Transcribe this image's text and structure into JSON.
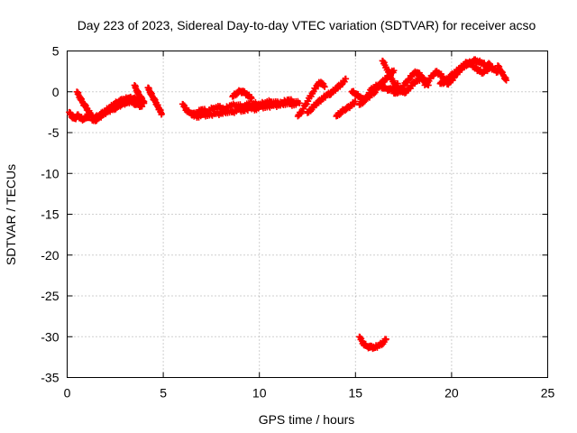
{
  "chart_data": {
    "type": "scatter",
    "title": "Day 223 of 2023, Sidereal Day-to-day VTEC variation (SDTVAR) for receiver acso",
    "xlabel": "GPS time / hours",
    "ylabel": "SDTVAR / TECUs",
    "xlim": [
      0,
      25
    ],
    "ylim": [
      -35,
      5
    ],
    "grid": true,
    "marker": "plus",
    "color": "#ff0000",
    "x_ticks": [
      0,
      5,
      10,
      15,
      20,
      25
    ],
    "y_ticks": [
      5,
      0,
      -5,
      -10,
      -15,
      -20,
      -25,
      -30,
      -35
    ],
    "series": [
      {
        "name": "SDTVAR",
        "segments": [
          {
            "x": [
              0.1,
              0.25,
              0.4,
              0.55,
              0.7,
              0.85,
              1.0,
              1.15
            ],
            "y": [
              -2.5,
              -3.0,
              -3.3,
              -2.9,
              -3.2,
              -3.4,
              -3.0,
              -3.2
            ]
          },
          {
            "x": [
              0.5,
              0.65,
              0.8,
              0.95,
              1.1,
              1.25,
              1.4,
              1.6,
              1.8,
              2.0,
              2.2,
              2.4,
              2.6,
              2.8,
              3.0,
              3.2,
              3.4,
              3.6,
              3.8,
              4.0
            ],
            "y": [
              0.0,
              -0.6,
              -1.3,
              -1.8,
              -2.3,
              -2.9,
              -3.2,
              -3.0,
              -2.7,
              -2.3,
              -2.0,
              -1.6,
              -1.3,
              -1.1,
              -0.9,
              -0.8,
              -0.8,
              -0.9,
              -1.1,
              -1.2
            ]
          },
          {
            "x": [
              1.3,
              1.5,
              1.7,
              1.9,
              2.1,
              2.3,
              2.5,
              2.7,
              2.9,
              3.1,
              3.3,
              3.5,
              3.7,
              3.9
            ],
            "y": [
              -3.5,
              -3.4,
              -3.1,
              -2.7,
              -2.4,
              -2.2,
              -2.0,
              -1.7,
              -1.5,
              -1.3,
              -1.2,
              -1.4,
              -1.6,
              -1.8
            ]
          },
          {
            "x": [
              3.5,
              3.62,
              3.75,
              3.88,
              4.0
            ],
            "y": [
              0.8,
              0.2,
              -0.4,
              -0.9,
              -1.4
            ]
          },
          {
            "x": [
              4.2,
              4.32,
              4.44,
              4.56,
              4.68,
              4.8,
              4.92
            ],
            "y": [
              0.5,
              0.0,
              -0.6,
              -1.1,
              -1.6,
              -2.2,
              -2.7
            ]
          },
          {
            "x": [
              6.0,
              6.2,
              6.4,
              6.6,
              6.8,
              7.0,
              7.3,
              7.6,
              7.9,
              8.2,
              8.5,
              8.8,
              9.1,
              9.4,
              9.7,
              10.0,
              10.3,
              10.6,
              10.9,
              11.2,
              11.5,
              11.8,
              12.1
            ],
            "y": [
              -1.5,
              -2.2,
              -2.6,
              -2.8,
              -2.5,
              -2.2,
              -2.4,
              -2.0,
              -1.9,
              -2.1,
              -1.7,
              -1.6,
              -1.8,
              -1.6,
              -1.4,
              -1.6,
              -1.3,
              -1.2,
              -1.4,
              -1.3,
              -1.0,
              -1.2,
              -1.4
            ]
          },
          {
            "x": [
              6.5,
              6.8,
              7.1,
              7.4,
              7.7,
              8.0,
              8.3,
              8.6,
              8.9,
              9.2,
              9.5,
              9.8,
              10.1,
              10.4,
              10.7,
              11.0,
              11.3,
              11.6,
              11.9
            ],
            "y": [
              -2.9,
              -3.0,
              -2.8,
              -2.9,
              -2.6,
              -2.7,
              -2.4,
              -2.5,
              -2.2,
              -2.3,
              -2.0,
              -2.1,
              -1.8,
              -1.9,
              -1.6,
              -1.7,
              -1.4,
              -1.5,
              -1.6
            ]
          },
          {
            "x": [
              8.6,
              8.8,
              9.0,
              9.2,
              9.4,
              9.6
            ],
            "y": [
              -0.6,
              -0.2,
              0.1,
              -0.1,
              -0.4,
              -0.8
            ]
          },
          {
            "x": [
              12.0,
              12.2,
              12.4,
              12.6,
              12.8,
              13.0,
              13.2,
              13.4
            ],
            "y": [
              -3.0,
              -2.4,
              -1.6,
              -0.8,
              0.0,
              0.8,
              1.2,
              0.6
            ]
          },
          {
            "x": [
              12.5,
              12.7,
              12.9,
              13.1,
              13.3,
              13.5,
              13.7,
              13.9,
              14.1,
              14.3,
              14.5
            ],
            "y": [
              -2.6,
              -2.1,
              -1.6,
              -1.2,
              -0.8,
              -0.4,
              -0.2,
              0.2,
              0.6,
              1.0,
              1.6
            ]
          },
          {
            "x": [
              14.0,
              14.2,
              14.4,
              14.6,
              14.8,
              15.0
            ],
            "y": [
              -3.0,
              -2.6,
              -2.2,
              -2.0,
              -1.6,
              -1.2
            ]
          },
          {
            "x": [
              14.8,
              15.0,
              15.2,
              15.4,
              15.6,
              15.8,
              16.0,
              16.2,
              16.4,
              16.6,
              16.8,
              17.0
            ],
            "y": [
              0.0,
              -0.2,
              -0.6,
              -1.0,
              -0.8,
              -0.4,
              0.0,
              0.6,
              1.2,
              1.6,
              2.2,
              2.6
            ]
          },
          {
            "x": [
              15.2,
              15.4,
              15.6,
              15.8,
              16.0,
              16.2,
              16.4,
              16.6,
              16.8,
              17.0,
              17.2
            ],
            "y": [
              -1.6,
              -1.2,
              -0.6,
              0.2,
              0.6,
              0.8,
              0.6,
              0.4,
              0.2,
              0.6,
              1.0
            ]
          },
          {
            "x": [
              16.4,
              16.6,
              16.8,
              17.0,
              17.2,
              17.4,
              17.6,
              17.8,
              18.0,
              18.2,
              18.4,
              18.6
            ],
            "y": [
              3.8,
              3.0,
              2.0,
              1.0,
              0.4,
              0.0,
              0.0,
              0.4,
              1.0,
              1.4,
              1.6,
              1.4
            ]
          },
          {
            "x": [
              17.0,
              17.2,
              17.4,
              17.6,
              17.8,
              18.0,
              18.2,
              18.4,
              18.6,
              18.8
            ],
            "y": [
              -0.2,
              0.0,
              0.4,
              1.0,
              1.6,
              2.2,
              2.4,
              2.0,
              1.4,
              0.8
            ]
          },
          {
            "x": [
              18.6,
              18.8,
              19.0,
              19.2,
              19.4,
              19.6,
              19.8,
              20.0,
              20.2,
              20.4,
              20.6,
              20.8,
              21.0,
              21.2,
              21.4,
              21.6,
              21.8,
              22.0
            ],
            "y": [
              0.8,
              1.4,
              2.0,
              2.4,
              2.2,
              1.6,
              1.0,
              1.4,
              2.0,
              2.6,
              3.0,
              3.4,
              3.6,
              3.8,
              3.7,
              3.5,
              3.2,
              3.4
            ]
          },
          {
            "x": [
              19.4,
              19.6,
              19.8,
              20.0,
              20.2,
              20.4,
              20.6,
              20.8,
              21.0,
              21.2,
              21.4,
              21.6,
              21.8,
              22.0,
              22.2,
              22.4
            ],
            "y": [
              1.0,
              1.2,
              1.6,
              2.0,
              2.4,
              2.8,
              3.2,
              3.6,
              3.4,
              3.0,
              2.6,
              2.4,
              2.6,
              3.0,
              2.8,
              2.4
            ]
          },
          {
            "x": [
              22.4,
              22.55,
              22.7,
              22.85
            ],
            "y": [
              3.2,
              2.6,
              2.0,
              1.4
            ]
          },
          {
            "x": [
              15.2,
              15.4,
              15.6,
              15.8,
              16.0,
              16.2,
              16.4,
              16.6
            ],
            "y": [
              -30.0,
              -30.8,
              -31.2,
              -31.3,
              -31.3,
              -31.1,
              -30.8,
              -30.3
            ]
          }
        ]
      }
    ]
  }
}
